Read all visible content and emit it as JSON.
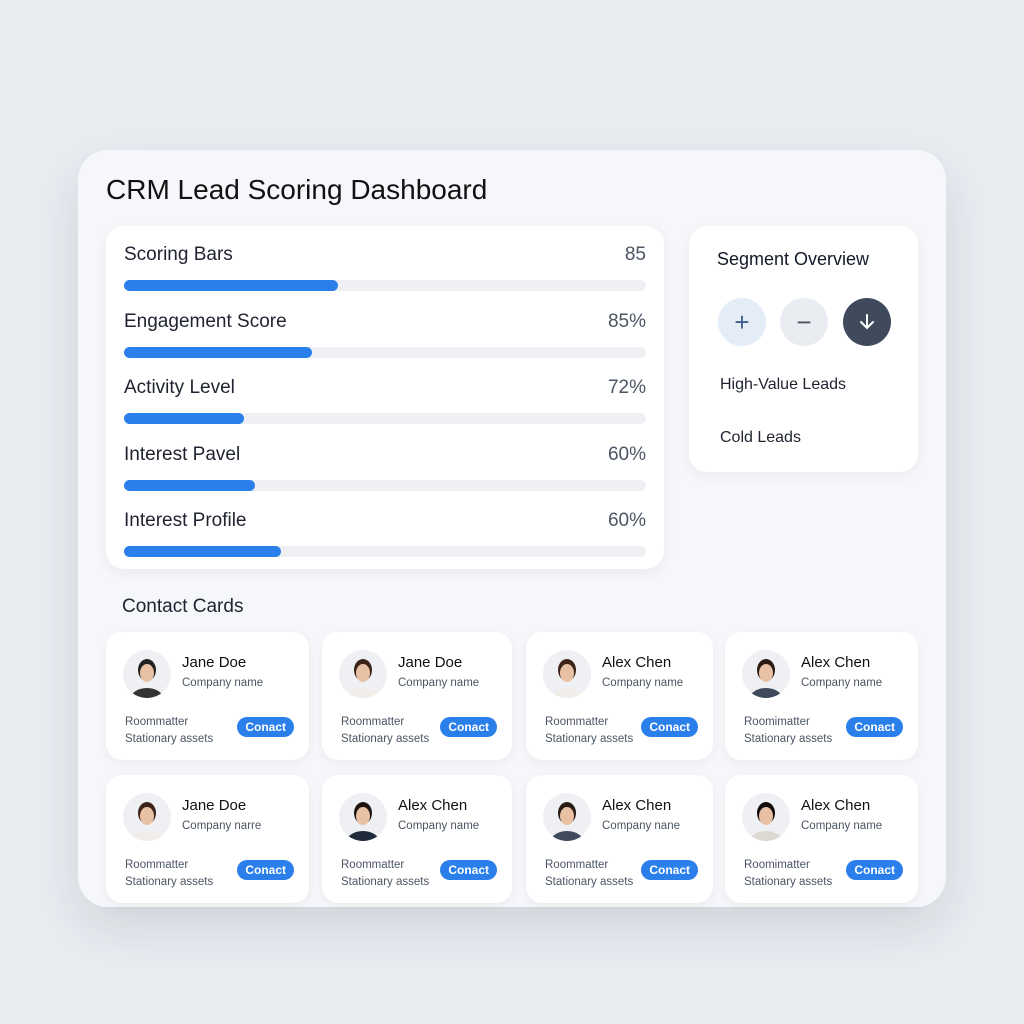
{
  "title": "CRM Lead Scoring Dashboard",
  "scores": [
    {
      "label": "Scoring Bars",
      "value": "85",
      "fill_percent": 41
    },
    {
      "label": "Engagement Score",
      "value": "85%",
      "fill_percent": 36
    },
    {
      "label": "Activity Level",
      "value": "72%",
      "fill_percent": 23
    },
    {
      "label": "Interest Pavel",
      "value": "60%",
      "fill_percent": 25
    },
    {
      "label": "Interest Profile",
      "value": "60%",
      "fill_percent": 30
    }
  ],
  "segment": {
    "title": "Segment Overview",
    "buttons": [
      "plus-icon",
      "minus-icon",
      "arrow-down-icon"
    ],
    "items": [
      "High-Value Leads",
      "Cold Leads"
    ]
  },
  "contacts_title": "Contact Cards",
  "contacts": [
    {
      "name": "Jane Doe",
      "company": "Company name",
      "line1": "Roommatter",
      "line2": "Stationary assets",
      "button": "Conact",
      "hair": "#222",
      "shirt": "#333"
    },
    {
      "name": "Jane Doe",
      "company": "Company name",
      "line1": "Roommatter",
      "line2": "Stationary assets",
      "button": "Conact",
      "hair": "#3b2318",
      "shirt": "#f1ede8"
    },
    {
      "name": "Alex Chen",
      "company": "Company name",
      "line1": "Roommatter",
      "line2": "Stationary assets",
      "button": "Conact",
      "hair": "#3b2318",
      "shirt": "#f1ede8"
    },
    {
      "name": "Alex Chen",
      "company": "Company name",
      "line1": "Roomimatter",
      "line2": "Stationary assets",
      "button": "Conact",
      "hair": "#2a1c14",
      "shirt": "#3f4b5c"
    },
    {
      "name": "Jane Doe",
      "company": "Company narre",
      "line1": "Roommatter",
      "line2": "Stationary assets",
      "button": "Conact",
      "hair": "#3b2318",
      "shirt": "#f1ede8"
    },
    {
      "name": "Alex Chen",
      "company": "Company name",
      "line1": "Roommatter",
      "line2": "Stationary assets",
      "button": "Conact",
      "hair": "#1c1410",
      "shirt": "#1f2a3a"
    },
    {
      "name": "Alex Chen",
      "company": "Company nane",
      "line1": "Roommatter",
      "line2": "Stationary assets",
      "button": "Conact",
      "hair": "#2a1c14",
      "shirt": "#3f4b5c"
    },
    {
      "name": "Alex Chen",
      "company": "Company name",
      "line1": "Roomimatter",
      "line2": "Stationary assets",
      "button": "Conact",
      "hair": "#120c0a",
      "shirt": "#ddd8d2"
    }
  ],
  "colors": {
    "accent": "#2b7fea",
    "dark_button": "#3f4b5c"
  }
}
